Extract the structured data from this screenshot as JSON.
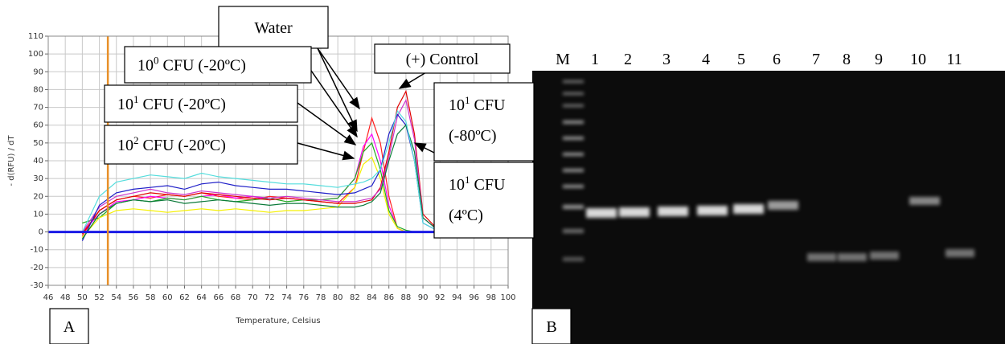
{
  "chart_data": {
    "type": "line",
    "y_label": "- d(RFU) / dT",
    "x_label": "Temperature, Celsius",
    "panel_label": "A",
    "x": [
      50,
      52,
      54,
      56,
      58,
      60,
      62,
      64,
      66,
      68,
      70,
      72,
      74,
      76,
      78,
      80,
      82,
      83,
      84,
      85,
      86,
      87,
      88,
      89,
      90,
      92
    ],
    "xlim": [
      46,
      100
    ],
    "xticks": [
      46,
      48,
      50,
      52,
      54,
      56,
      58,
      60,
      62,
      64,
      66,
      68,
      70,
      72,
      74,
      76,
      78,
      80,
      82,
      84,
      86,
      88,
      90,
      92,
      94,
      96,
      98,
      100
    ],
    "ylim": [
      -30,
      110
    ],
    "yticks": [
      -30,
      -20,
      -10,
      0,
      10,
      20,
      30,
      40,
      50,
      60,
      70,
      80,
      90,
      100,
      110
    ],
    "grid": true,
    "threshold_x": 53,
    "threshold_color": "#e8902a",
    "zero_color": "#1a1ae6",
    "series": [
      {
        "color": "#ff2020",
        "values": [
          -2,
          12,
          18,
          20,
          19,
          21,
          20,
          22,
          20,
          19,
          18,
          20,
          19,
          18,
          17,
          16,
          25,
          45,
          64,
          50,
          20,
          2,
          0,
          0,
          0,
          0
        ]
      },
      {
        "color": "#ff00ff",
        "values": [
          0,
          10,
          17,
          18,
          20,
          19,
          18,
          20,
          21,
          19,
          20,
          18,
          19,
          18,
          18,
          19,
          30,
          48,
          55,
          40,
          15,
          2,
          0,
          0,
          0,
          0
        ]
      },
      {
        "color": "#22aa22",
        "values": [
          5,
          8,
          16,
          18,
          17,
          19,
          18,
          20,
          18,
          17,
          18,
          19,
          17,
          18,
          18,
          19,
          30,
          45,
          50,
          35,
          12,
          3,
          1,
          0,
          0,
          0
        ]
      },
      {
        "color": "#f5f000",
        "values": [
          -3,
          8,
          12,
          13,
          12,
          11,
          12,
          13,
          12,
          13,
          12,
          11,
          12,
          12,
          13,
          14,
          25,
          38,
          42,
          30,
          10,
          2,
          0,
          0,
          0,
          0
        ]
      },
      {
        "color": "#e00000",
        "values": [
          -1,
          12,
          18,
          20,
          22,
          21,
          20,
          22,
          21,
          20,
          19,
          18,
          19,
          18,
          17,
          16,
          16,
          17,
          18,
          25,
          45,
          70,
          79,
          55,
          10,
          0
        ]
      },
      {
        "color": "#cc33cc",
        "values": [
          0,
          14,
          20,
          22,
          24,
          22,
          21,
          23,
          22,
          21,
          20,
          19,
          20,
          19,
          18,
          17,
          17,
          18,
          19,
          24,
          42,
          65,
          74,
          52,
          8,
          0
        ]
      },
      {
        "color": "#1f1fc8",
        "values": [
          -5,
          15,
          22,
          24,
          25,
          26,
          24,
          27,
          28,
          26,
          25,
          24,
          24,
          23,
          22,
          21,
          22,
          24,
          26,
          35,
          55,
          66,
          60,
          40,
          5,
          0
        ]
      },
      {
        "color": "#0b7a3a",
        "values": [
          -4,
          10,
          16,
          18,
          17,
          18,
          16,
          17,
          18,
          17,
          16,
          15,
          16,
          16,
          15,
          14,
          14,
          15,
          17,
          22,
          40,
          55,
          60,
          45,
          8,
          0
        ]
      },
      {
        "color": "#55dddd",
        "values": [
          0,
          20,
          28,
          30,
          32,
          31,
          30,
          33,
          31,
          30,
          29,
          28,
          27,
          27,
          26,
          25,
          27,
          28,
          30,
          35,
          50,
          68,
          62,
          40,
          5,
          0
        ]
      }
    ],
    "annotations": [
      {
        "text": "Water"
      },
      {
        "base": "10",
        "exp": "0",
        "rest": " CFU (-20ºC)"
      },
      {
        "base": "10",
        "exp": "1",
        "rest": " CFU (-20ºC)"
      },
      {
        "base": "10",
        "exp": "2",
        "rest": " CFU (-20ºC)"
      },
      {
        "text": "(+) Control"
      },
      {
        "base": "10",
        "exp": "1",
        "rest": " CFU",
        "line2": "(-80ºC)"
      },
      {
        "base": "10",
        "exp": "1",
        "rest": " CFU",
        "line2": "(4ºC)"
      }
    ]
  },
  "gel": {
    "panel_label": "B",
    "lanes": [
      "M",
      "1",
      "2",
      "3",
      "4",
      "5",
      "6",
      "7",
      "8",
      "9",
      "10",
      "11"
    ]
  }
}
